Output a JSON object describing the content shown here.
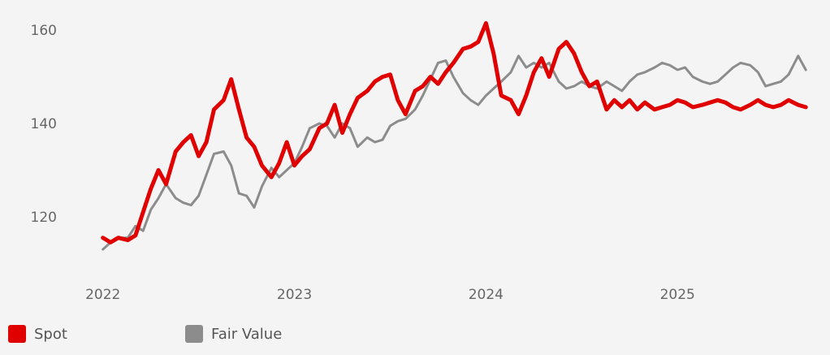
{
  "chart_data": {
    "type": "line",
    "title": "",
    "xlabel": "",
    "ylabel": "",
    "x_ticks": [
      "2022",
      "2023",
      "2024",
      "2025"
    ],
    "y_ticks": [
      120,
      140,
      160
    ],
    "ylim": [
      109,
      163
    ],
    "xlim": [
      2021.98,
      2025.72
    ],
    "grid": false,
    "legend_position": "bottom-left",
    "series": [
      {
        "name": "Spot",
        "color": "#e00000",
        "x": [
          2022.0,
          2022.04,
          2022.08,
          2022.13,
          2022.17,
          2022.21,
          2022.25,
          2022.29,
          2022.33,
          2022.38,
          2022.42,
          2022.46,
          2022.5,
          2022.54,
          2022.58,
          2022.63,
          2022.67,
          2022.71,
          2022.75,
          2022.79,
          2022.83,
          2022.88,
          2022.92,
          2022.96,
          2023.0,
          2023.04,
          2023.08,
          2023.13,
          2023.17,
          2023.21,
          2023.25,
          2023.29,
          2023.33,
          2023.38,
          2023.42,
          2023.46,
          2023.5,
          2023.54,
          2023.58,
          2023.63,
          2023.67,
          2023.71,
          2023.75,
          2023.79,
          2023.83,
          2023.88,
          2023.92,
          2023.96,
          2024.0,
          2024.04,
          2024.08,
          2024.13,
          2024.17,
          2024.21,
          2024.25,
          2024.29,
          2024.33,
          2024.38,
          2024.42,
          2024.46,
          2024.5,
          2024.54,
          2024.58,
          2024.63,
          2024.67,
          2024.71,
          2024.75,
          2024.79,
          2024.83,
          2024.88,
          2024.92,
          2024.96,
          2025.0,
          2025.04,
          2025.08,
          2025.13,
          2025.17,
          2025.21,
          2025.25,
          2025.29,
          2025.33,
          2025.38,
          2025.42,
          2025.46,
          2025.5,
          2025.54,
          2025.58,
          2025.63,
          2025.67
        ],
        "values": [
          115.5,
          114.5,
          115.5,
          115.0,
          116.0,
          121.0,
          126.0,
          130.0,
          127.0,
          134.0,
          136.0,
          137.5,
          133.0,
          136.0,
          143.0,
          145.0,
          149.5,
          143.0,
          137.0,
          135.0,
          131.0,
          128.5,
          131.5,
          136.0,
          131.0,
          133.0,
          134.5,
          139.0,
          140.0,
          144.0,
          138.0,
          142.0,
          145.5,
          147.0,
          149.0,
          150.0,
          150.5,
          145.0,
          142.0,
          147.0,
          148.0,
          150.0,
          148.5,
          151.0,
          153.0,
          156.0,
          156.5,
          157.5,
          161.5,
          155.0,
          146.0,
          145.0,
          142.0,
          146.0,
          151.0,
          154.0,
          150.0,
          156.0,
          157.5,
          155.0,
          151.0,
          148.0,
          149.0,
          143.0,
          145.0,
          143.5,
          145.0,
          143.0,
          144.5,
          143.0,
          143.5,
          144.0,
          145.0,
          144.5,
          143.5,
          144.0,
          144.5,
          145.0,
          144.5,
          143.5,
          143.0,
          144.0,
          145.0,
          144.0,
          143.5,
          144.0,
          145.0,
          144.0,
          143.5
        ]
      },
      {
        "name": "Fair Value",
        "color": "#8c8c8c",
        "x": [
          2022.0,
          2022.04,
          2022.08,
          2022.13,
          2022.17,
          2022.21,
          2022.25,
          2022.29,
          2022.33,
          2022.38,
          2022.42,
          2022.46,
          2022.5,
          2022.54,
          2022.58,
          2022.63,
          2022.67,
          2022.71,
          2022.75,
          2022.79,
          2022.83,
          2022.88,
          2022.92,
          2022.96,
          2023.0,
          2023.04,
          2023.08,
          2023.13,
          2023.17,
          2023.21,
          2023.25,
          2023.29,
          2023.33,
          2023.38,
          2023.42,
          2023.46,
          2023.5,
          2023.54,
          2023.58,
          2023.63,
          2023.67,
          2023.71,
          2023.75,
          2023.79,
          2023.83,
          2023.88,
          2023.92,
          2023.96,
          2024.0,
          2024.04,
          2024.08,
          2024.13,
          2024.17,
          2024.21,
          2024.25,
          2024.29,
          2024.33,
          2024.38,
          2024.42,
          2024.46,
          2024.5,
          2024.54,
          2024.58,
          2024.63,
          2024.67,
          2024.71,
          2024.75,
          2024.79,
          2024.83,
          2024.88,
          2024.92,
          2024.96,
          2025.0,
          2025.04,
          2025.08,
          2025.13,
          2025.17,
          2025.21,
          2025.25,
          2025.29,
          2025.33,
          2025.38,
          2025.42,
          2025.46,
          2025.5,
          2025.54,
          2025.58,
          2025.63,
          2025.67
        ],
        "values": [
          113.0,
          114.5,
          115.5,
          115.5,
          118.0,
          117.0,
          121.5,
          124.0,
          127.0,
          124.0,
          123.0,
          122.5,
          124.5,
          129.0,
          133.5,
          134.0,
          131.0,
          125.0,
          124.5,
          122.0,
          126.5,
          130.5,
          128.5,
          130.0,
          131.5,
          135.0,
          139.0,
          140.0,
          139.5,
          137.0,
          140.0,
          139.0,
          135.0,
          137.0,
          136.0,
          136.5,
          139.5,
          140.5,
          141.0,
          143.0,
          146.0,
          149.5,
          153.0,
          153.5,
          150.0,
          146.5,
          145.0,
          144.0,
          146.0,
          147.5,
          149.0,
          151.0,
          154.5,
          152.0,
          153.0,
          152.0,
          153.0,
          149.0,
          147.5,
          148.0,
          149.0,
          148.0,
          147.5,
          149.0,
          148.0,
          147.0,
          149.0,
          150.5,
          151.0,
          152.0,
          153.0,
          152.5,
          151.5,
          152.0,
          150.0,
          149.0,
          148.5,
          149.0,
          150.5,
          152.0,
          153.0,
          152.5,
          151.0,
          148.0,
          148.5,
          149.0,
          150.5,
          154.5,
          151.5
        ]
      }
    ]
  },
  "legend": {
    "items": [
      {
        "label": "Spot",
        "color": "#e00000"
      },
      {
        "label": "Fair Value",
        "color": "#8c8c8c"
      }
    ]
  }
}
